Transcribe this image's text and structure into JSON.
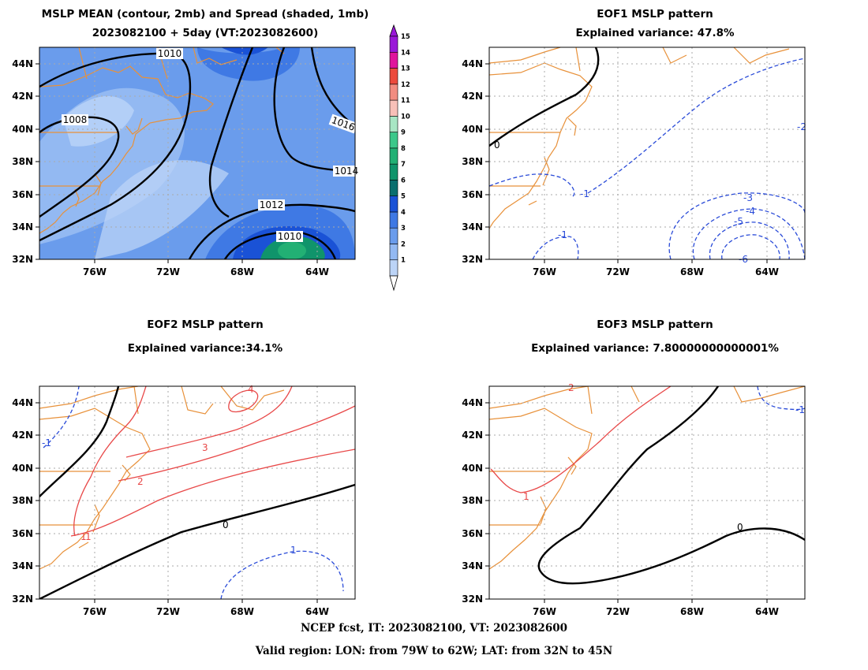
{
  "panels": {
    "mean": {
      "title_line1": "MSLP MEAN (contour, 2mb) and Spread (shaded, 1mb)",
      "title_line2": "2023082100 + 5day (VT:2023082600)",
      "contour_labels": [
        "1010",
        "1008",
        "1016",
        "1014",
        "1012",
        "1010"
      ]
    },
    "eof1": {
      "title_line1": "EOF1 MSLP pattern",
      "title_line2": "Explained variance: 47.8%",
      "contour_labels": [
        "0",
        "-1",
        "-1",
        "-2",
        "-3",
        "-4",
        "-5",
        "-6"
      ]
    },
    "eof2": {
      "title_line1": "EOF2 MSLP pattern",
      "title_line2": "Explained variance:34.1%",
      "contour_labels": [
        "4",
        "3",
        "2",
        "1",
        "1",
        "0",
        "-1",
        "1"
      ]
    },
    "eof3": {
      "title_line1": "EOF3 MSLP pattern",
      "title_line2": "Explained variance: 7.80000000000001%",
      "contour_labels": [
        "2",
        "-1",
        "1",
        "0"
      ]
    }
  },
  "axes": {
    "lat_labels": [
      "44N",
      "42N",
      "40N",
      "38N",
      "36N",
      "34N",
      "32N"
    ],
    "lon_labels": [
      "76W",
      "72W",
      "68W",
      "64W"
    ]
  },
  "colorbar": {
    "labels": [
      "1",
      "2",
      "3",
      "4",
      "5",
      "6",
      "7",
      "8",
      "9",
      "10",
      "11",
      "12",
      "13",
      "14",
      "15"
    ],
    "colors": [
      "#bcd4f7",
      "#93b9f2",
      "#6a9cec",
      "#3f79e4",
      "#1a52d6",
      "#0a6e6e",
      "#10946b",
      "#22b074",
      "#3cc88a",
      "#a8e6c4",
      "#f8c0b8",
      "#f28c80",
      "#ec4a3c",
      "#e0149c",
      "#9a18d8"
    ]
  },
  "footer": {
    "line1": "NCEP fcst, IT: 2023082100, VT: 2023082600",
    "line2": "Valid region: LON: from 79W to 62W; LAT: from 32N to 45N"
  }
}
